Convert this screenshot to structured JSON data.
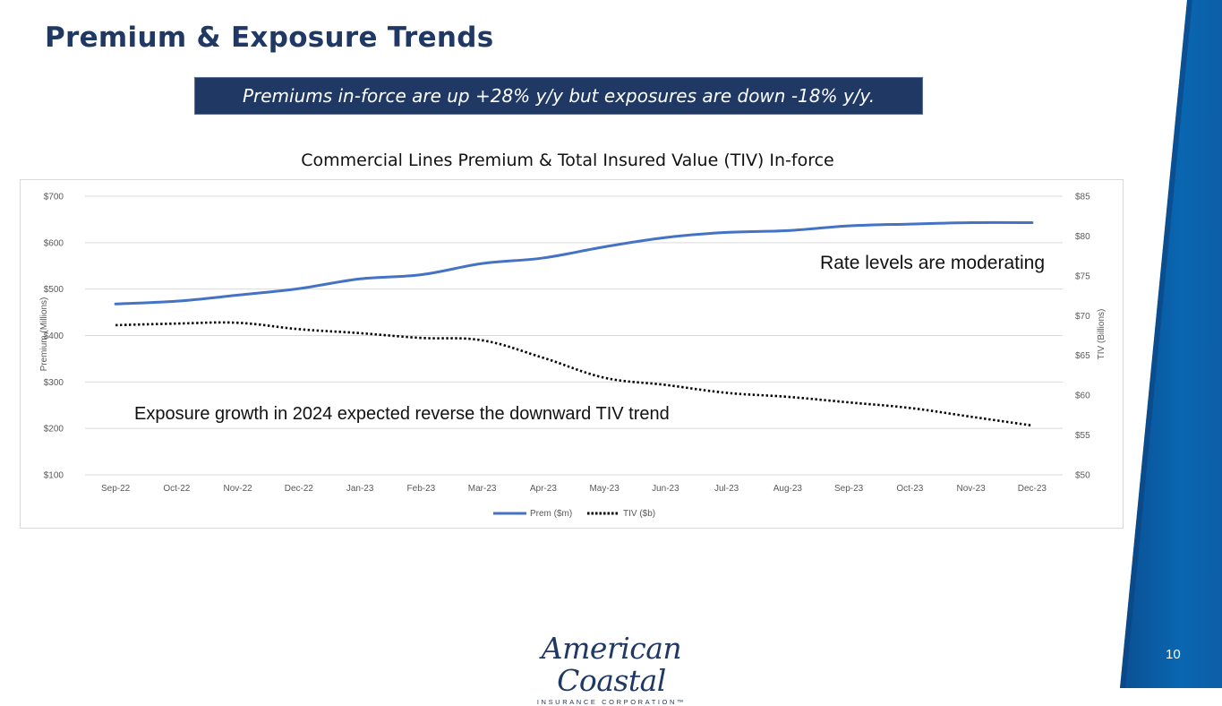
{
  "slide": {
    "title": "Premium & Exposure Trends",
    "callout": "Premiums in-force are up +28% y/y but exposures are down -18% y/y.",
    "page_number": "10",
    "accent": "#1f3864"
  },
  "logo": {
    "main": "American Coastal",
    "sub": "INSURANCE CORPORATION™"
  },
  "chart_data": {
    "type": "line",
    "title": "Commercial Lines Premium & Total Insured Value (TIV) In-force",
    "categories": [
      "Sep-22",
      "Oct-22",
      "Nov-22",
      "Dec-22",
      "Jan-23",
      "Feb-23",
      "Mar-23",
      "Apr-23",
      "May-23",
      "Jun-23",
      "Jul-23",
      "Aug-23",
      "Sep-23",
      "Oct-23",
      "Nov-23",
      "Dec-23"
    ],
    "series": [
      {
        "name": "Prem ($m)",
        "axis": "left",
        "style": "solid",
        "color": "#4472c4",
        "values": [
          468,
          474,
          487,
          501,
          522,
          531,
          555,
          567,
          591,
          611,
          622,
          626,
          636,
          640,
          643,
          643
        ]
      },
      {
        "name": "TIV ($b)",
        "axis": "right",
        "style": "dotted",
        "color": "#000000",
        "values": [
          68.8,
          69.0,
          69.1,
          68.3,
          67.8,
          67.2,
          66.9,
          64.7,
          62.2,
          61.3,
          60.3,
          59.8,
          59.1,
          58.4,
          57.3,
          56.2
        ]
      }
    ],
    "y_left": {
      "label": "Premium (Millions)",
      "min": 100,
      "max": 700,
      "ticks": [
        "$100",
        "$200",
        "$300",
        "$400",
        "$500",
        "$600",
        "$700"
      ]
    },
    "y_right": {
      "label": "TIV (Billions)",
      "min": 50,
      "max": 85,
      "ticks": [
        "$50",
        "$55",
        "$60",
        "$65",
        "$70",
        "$75",
        "$80",
        "$85"
      ]
    },
    "legend_position": "bottom",
    "grid": true,
    "annotations": [
      "Rate levels are moderating",
      "Exposure growth in 2024 expected reverse the downward TIV trend"
    ]
  }
}
